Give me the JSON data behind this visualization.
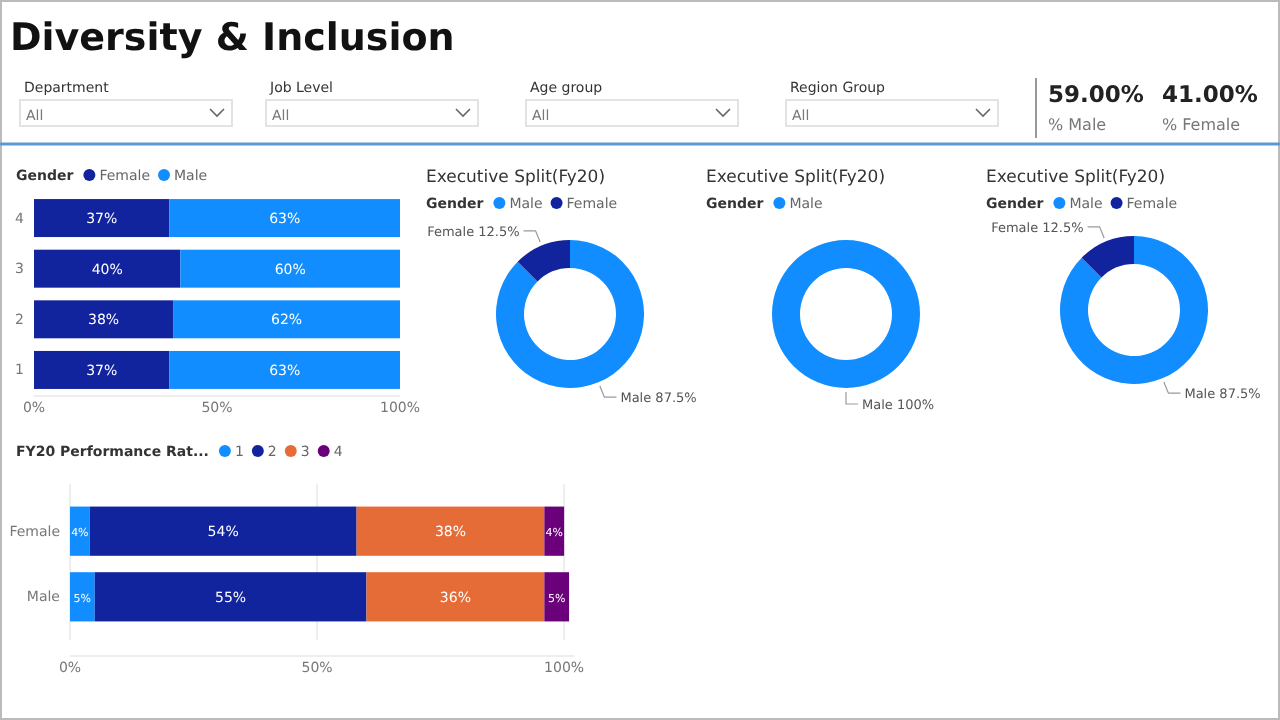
{
  "chart_data": [
    {
      "type": "other",
      "title": "Diversity & Inclusion",
      "annotations": [
        "Department",
        "All",
        "Job Level",
        "All",
        "Age group",
        "All",
        "Region Group",
        "All"
      ]
    },
    {
      "type": "other",
      "categories": [
        "% Male",
        "% Female"
      ],
      "value_labels": [
        "59.00%",
        "41.00%"
      ]
    },
    {
      "type": "bar",
      "orientation": "horizontal",
      "stacked": true,
      "legend_title": "Gender",
      "legend": "top left",
      "grid": false,
      "categories": [
        "4",
        "3",
        "2",
        "1"
      ],
      "xlim": [
        0,
        100
      ],
      "xticks": [
        {
          "value": 0,
          "label": "0%"
        },
        {
          "value": 50,
          "label": "50%"
        },
        {
          "value": 100,
          "label": "100%"
        }
      ],
      "series": [
        {
          "name": "Female",
          "color": "#12239e",
          "values": [
            37,
            40,
            38,
            37
          ],
          "value_labels": [
            "37%",
            "40%",
            "38%",
            "37%"
          ]
        },
        {
          "name": "Male",
          "color": "#118dff",
          "values": [
            63,
            60,
            62,
            63
          ],
          "value_labels": [
            "63%",
            "60%",
            "62%",
            "63%"
          ]
        }
      ]
    },
    {
      "type": "donut",
      "title": "Executive Split(Fy20)",
      "legend_title": "Gender",
      "legend": "top left",
      "categories": [
        "Male",
        "Female"
      ],
      "values": [
        87.5,
        12.5
      ],
      "colors": [
        "#118dff",
        "#12239e"
      ],
      "value_labels": [
        "Male 87.5%",
        "Female 12.5%"
      ]
    },
    {
      "type": "donut",
      "title": "Executive Split(Fy20)",
      "legend_title": "Gender",
      "legend": "top left",
      "categories": [
        "Male"
      ],
      "values": [
        100
      ],
      "colors": [
        "#118dff"
      ],
      "value_labels": [
        "Male 100%"
      ]
    },
    {
      "type": "donut",
      "title": "Executive Split(Fy20)",
      "legend_title": "Gender",
      "legend": "top left",
      "categories": [
        "Male",
        "Female"
      ],
      "values": [
        87.5,
        12.5
      ],
      "colors": [
        "#118dff",
        "#12239e"
      ],
      "value_labels": [
        "Male 87.5%",
        "Female 12.5%"
      ]
    },
    {
      "type": "bar",
      "orientation": "horizontal",
      "stacked": true,
      "legend_title": "FY20 Performance Rat...",
      "legend": "top left",
      "grid": "x",
      "categories": [
        "Female",
        "Male"
      ],
      "xlim": [
        0,
        102
      ],
      "xticks": [
        {
          "value": 0,
          "label": "0%"
        },
        {
          "value": 50,
          "label": "50%"
        },
        {
          "value": 100,
          "label": "100%"
        }
      ],
      "series": [
        {
          "name": "1",
          "color": "#118dff",
          "values": [
            4,
            5
          ],
          "value_labels": [
            "4%",
            "5%"
          ]
        },
        {
          "name": "2",
          "color": "#12239e",
          "values": [
            54,
            55
          ],
          "value_labels": [
            "54%",
            "55%"
          ]
        },
        {
          "name": "3",
          "color": "#e66c37",
          "values": [
            38,
            36
          ],
          "value_labels": [
            "38%",
            "36%"
          ]
        },
        {
          "name": "4",
          "color": "#6b007b",
          "values": [
            4,
            5
          ],
          "value_labels": [
            "4%",
            "5%"
          ]
        }
      ]
    }
  ]
}
